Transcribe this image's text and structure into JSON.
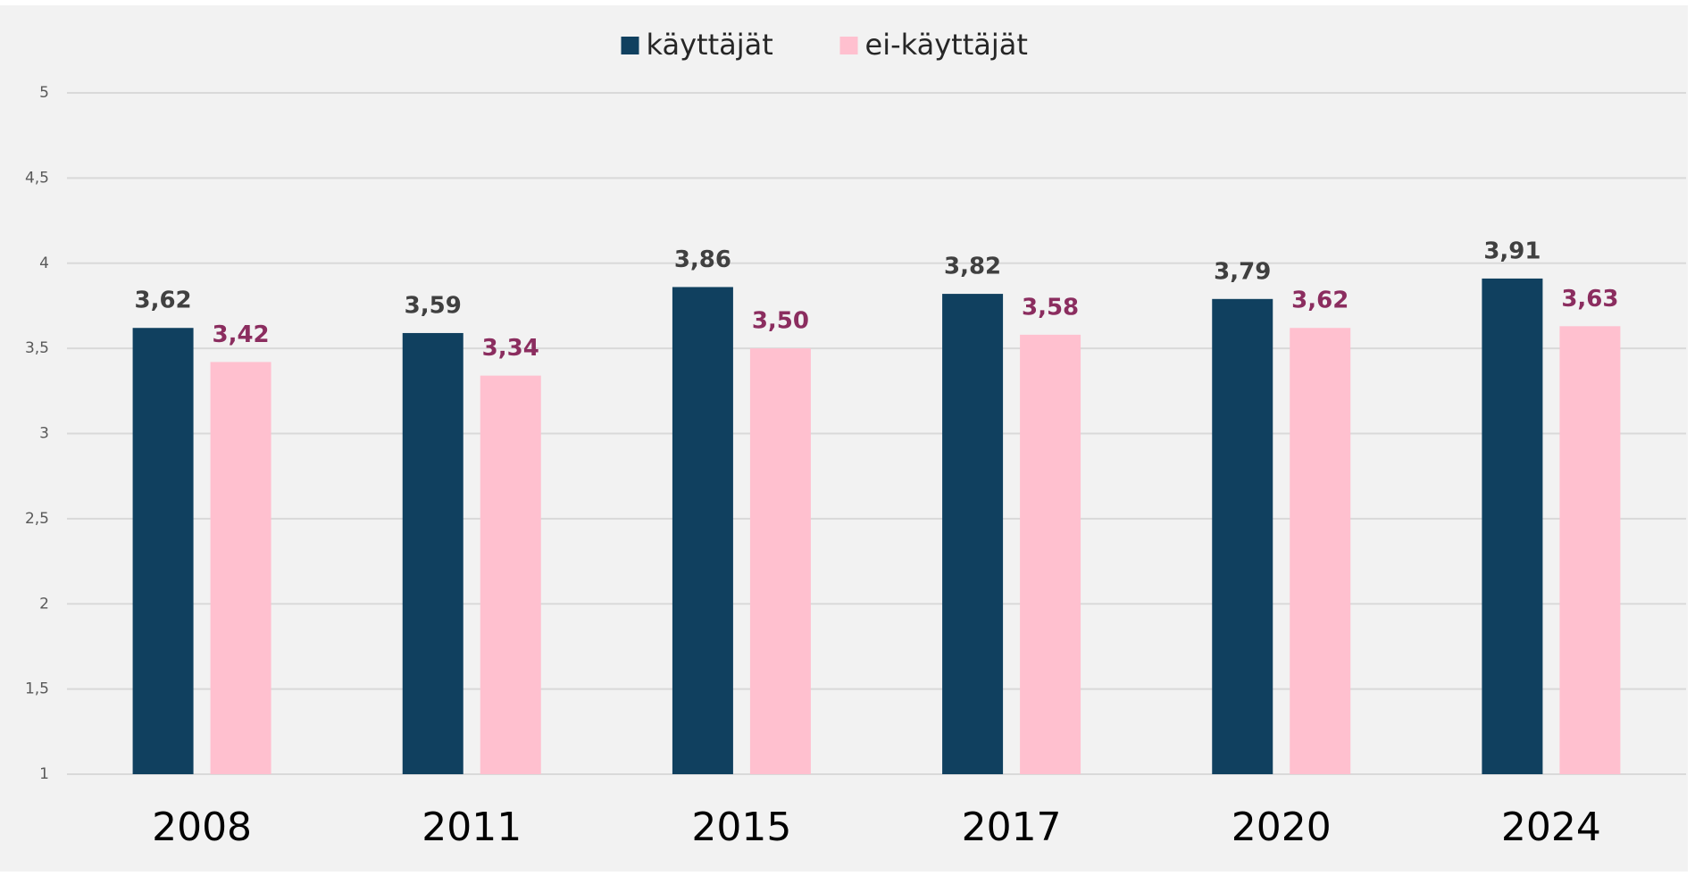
{
  "chart_data": {
    "type": "bar",
    "categories": [
      "2008",
      "2011",
      "2015",
      "2017",
      "2020",
      "2024"
    ],
    "series": [
      {
        "name": "käyttäjät",
        "color": "#10405f",
        "label_color": "#404040",
        "values": [
          3.62,
          3.59,
          3.86,
          3.82,
          3.79,
          3.91
        ],
        "value_labels": [
          "3,62",
          "3,59",
          "3,86",
          "3,82",
          "3,79",
          "3,91"
        ]
      },
      {
        "name": "ei-käyttäjät",
        "color": "#ffc0cf",
        "label_color": "#8b2d5f",
        "values": [
          3.42,
          3.34,
          3.5,
          3.58,
          3.62,
          3.63
        ],
        "value_labels": [
          "3,42",
          "3,34",
          "3,50",
          "3,58",
          "3,62",
          "3,63"
        ]
      }
    ],
    "ylim": [
      1,
      5
    ],
    "yticks": [
      1,
      {
        "value": 1.5,
        "label": "1,5"
      },
      2,
      {
        "value": 2.5,
        "label": "2,5"
      },
      3,
      {
        "value": 3.5,
        "label": "3,5"
      },
      4,
      {
        "value": 4.5,
        "label": "4,5"
      },
      5
    ],
    "grid": true,
    "legend": "top"
  }
}
